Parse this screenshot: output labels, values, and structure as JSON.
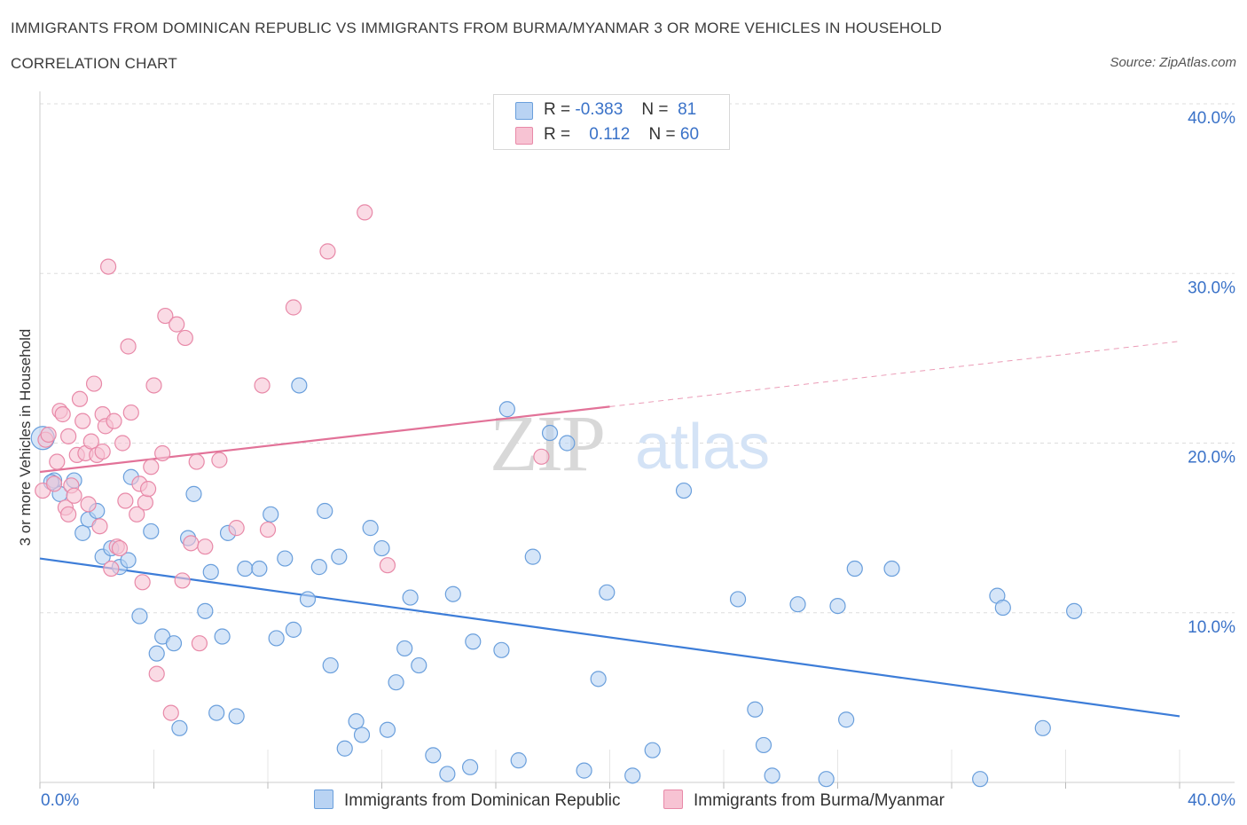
{
  "header": {
    "title": "IMMIGRANTS FROM DOMINICAN REPUBLIC VS IMMIGRANTS FROM BURMA/MYANMAR 3 OR MORE VEHICLES IN HOUSEHOLD",
    "subtitle": "CORRELATION CHART",
    "source": "Source: ZipAtlas.com"
  },
  "legend": {
    "r_label": "R =",
    "n_label": "N =",
    "series1": {
      "r": "-0.383",
      "n": "81"
    },
    "series2": {
      "r": "0.112",
      "n": "60"
    }
  },
  "watermark": {
    "zip": "ZIP",
    "atlas": "atlas"
  },
  "colors": {
    "blue_fill": "#b9d3f3",
    "blue_stroke": "#6a9fdc",
    "blue_line": "#3d7dd8",
    "pink_fill": "#f7c3d3",
    "pink_stroke": "#e889a8",
    "pink_line": "#e27298",
    "axis_text": "#3a72c8",
    "grid": "#dddddd"
  },
  "chart_data": {
    "type": "scatter",
    "title": "IMMIGRANTS FROM DOMINICAN REPUBLIC VS IMMIGRANTS FROM BURMA/MYANMAR 3 OR MORE VEHICLES IN HOUSEHOLD",
    "xlabel": "",
    "ylabel": "3 or more Vehicles in Household",
    "xlim": [
      0,
      40
    ],
    "ylim": [
      0,
      40
    ],
    "x_tick_labels": [
      "0.0%",
      "40.0%"
    ],
    "y_ticks": [
      10,
      20,
      30,
      40
    ],
    "y_tick_labels": [
      "10.0%",
      "20.0%",
      "30.0%",
      "40.0%"
    ],
    "grid": true,
    "legend_position": "top-center",
    "series": [
      {
        "name": "Immigrants from Dominican Republic",
        "color": "#6a9fdc",
        "R": -0.383,
        "N": 81,
        "trend": {
          "x": [
            0,
            40
          ],
          "y": [
            13.2,
            3.9
          ],
          "dashed_from": null
        },
        "points": [
          [
            0.1,
            20.3
          ],
          [
            0.5,
            17.8
          ],
          [
            0.7,
            17.0
          ],
          [
            1.2,
            17.8
          ],
          [
            1.5,
            14.7
          ],
          [
            1.7,
            15.5
          ],
          [
            2.0,
            16.0
          ],
          [
            2.2,
            13.3
          ],
          [
            2.5,
            13.8
          ],
          [
            2.8,
            12.7
          ],
          [
            3.1,
            13.1
          ],
          [
            3.2,
            18.0
          ],
          [
            3.5,
            9.8
          ],
          [
            3.9,
            14.8
          ],
          [
            4.1,
            7.6
          ],
          [
            4.3,
            8.6
          ],
          [
            4.7,
            8.2
          ],
          [
            4.9,
            3.2
          ],
          [
            5.2,
            14.4
          ],
          [
            5.4,
            17.0
          ],
          [
            5.8,
            10.1
          ],
          [
            6.0,
            12.4
          ],
          [
            6.2,
            4.1
          ],
          [
            6.4,
            8.6
          ],
          [
            6.6,
            14.7
          ],
          [
            6.9,
            3.9
          ],
          [
            7.2,
            12.6
          ],
          [
            7.7,
            12.6
          ],
          [
            8.1,
            15.8
          ],
          [
            8.3,
            8.5
          ],
          [
            8.6,
            13.2
          ],
          [
            8.9,
            9.0
          ],
          [
            9.1,
            23.4
          ],
          [
            9.4,
            10.8
          ],
          [
            9.8,
            12.7
          ],
          [
            10.0,
            16.0
          ],
          [
            10.2,
            6.9
          ],
          [
            10.5,
            13.3
          ],
          [
            10.7,
            2.0
          ],
          [
            11.1,
            3.6
          ],
          [
            11.3,
            2.8
          ],
          [
            11.6,
            15.0
          ],
          [
            12.0,
            13.8
          ],
          [
            12.2,
            3.1
          ],
          [
            12.5,
            5.9
          ],
          [
            12.8,
            7.9
          ],
          [
            13.0,
            10.9
          ],
          [
            13.3,
            6.9
          ],
          [
            13.8,
            1.6
          ],
          [
            14.3,
            0.5
          ],
          [
            14.5,
            11.1
          ],
          [
            15.1,
            0.9
          ],
          [
            15.2,
            8.3
          ],
          [
            16.2,
            7.8
          ],
          [
            16.4,
            22.0
          ],
          [
            16.8,
            1.3
          ],
          [
            17.3,
            13.3
          ],
          [
            17.9,
            20.6
          ],
          [
            18.5,
            20.0
          ],
          [
            19.1,
            0.7
          ],
          [
            19.6,
            6.1
          ],
          [
            19.9,
            11.2
          ],
          [
            20.8,
            0.4
          ],
          [
            21.5,
            1.9
          ],
          [
            22.6,
            17.2
          ],
          [
            24.5,
            10.8
          ],
          [
            25.1,
            4.3
          ],
          [
            25.4,
            2.2
          ],
          [
            25.7,
            0.4
          ],
          [
            26.6,
            10.5
          ],
          [
            27.6,
            0.2
          ],
          [
            28.0,
            10.4
          ],
          [
            28.3,
            3.7
          ],
          [
            28.6,
            12.6
          ],
          [
            29.9,
            12.6
          ],
          [
            33.0,
            0.2
          ],
          [
            33.6,
            11.0
          ],
          [
            33.8,
            10.3
          ],
          [
            35.2,
            3.2
          ],
          [
            36.3,
            10.1
          ],
          [
            0.4,
            17.7
          ]
        ]
      },
      {
        "name": "Immigrants from Burma/Myanmar",
        "color": "#e889a8",
        "R": 0.112,
        "N": 60,
        "trend": {
          "x": [
            0,
            40
          ],
          "y": [
            18.3,
            26.0
          ],
          "solid_until": 20
        },
        "points": [
          [
            0.1,
            17.2
          ],
          [
            0.2,
            20.2
          ],
          [
            0.3,
            20.5
          ],
          [
            0.5,
            17.6
          ],
          [
            0.6,
            18.9
          ],
          [
            0.7,
            21.9
          ],
          [
            0.8,
            21.7
          ],
          [
            0.9,
            16.2
          ],
          [
            1.0,
            15.8
          ],
          [
            1.1,
            17.5
          ],
          [
            1.2,
            16.9
          ],
          [
            1.3,
            19.3
          ],
          [
            1.4,
            22.6
          ],
          [
            1.5,
            21.3
          ],
          [
            1.6,
            19.4
          ],
          [
            1.7,
            16.4
          ],
          [
            1.8,
            20.1
          ],
          [
            1.9,
            23.5
          ],
          [
            2.0,
            19.3
          ],
          [
            2.1,
            15.1
          ],
          [
            2.2,
            21.7
          ],
          [
            2.3,
            21.0
          ],
          [
            2.4,
            30.4
          ],
          [
            2.5,
            12.6
          ],
          [
            2.6,
            21.3
          ],
          [
            2.7,
            13.9
          ],
          [
            2.8,
            13.8
          ],
          [
            2.9,
            20.0
          ],
          [
            3.0,
            16.6
          ],
          [
            3.1,
            25.7
          ],
          [
            3.2,
            21.8
          ],
          [
            3.4,
            15.8
          ],
          [
            3.5,
            17.6
          ],
          [
            3.6,
            11.8
          ],
          [
            3.7,
            16.5
          ],
          [
            3.8,
            17.3
          ],
          [
            3.9,
            18.6
          ],
          [
            4.0,
            23.4
          ],
          [
            4.1,
            6.4
          ],
          [
            4.3,
            19.4
          ],
          [
            4.4,
            27.5
          ],
          [
            4.6,
            4.1
          ],
          [
            4.8,
            27.0
          ],
          [
            5.0,
            11.9
          ],
          [
            5.1,
            26.2
          ],
          [
            5.3,
            14.1
          ],
          [
            5.5,
            18.9
          ],
          [
            5.6,
            8.2
          ],
          [
            5.8,
            13.9
          ],
          [
            6.3,
            19.0
          ],
          [
            6.9,
            15.0
          ],
          [
            7.8,
            23.4
          ],
          [
            8.0,
            14.9
          ],
          [
            8.9,
            28.0
          ],
          [
            10.1,
            31.3
          ],
          [
            11.4,
            33.6
          ],
          [
            12.2,
            12.8
          ],
          [
            17.6,
            19.2
          ],
          [
            1.0,
            20.4
          ],
          [
            2.2,
            19.5
          ]
        ]
      }
    ]
  },
  "bottom_legend": {
    "item1": "Immigrants from Dominican Republic",
    "item2": "Immigrants from Burma/Myanmar"
  }
}
